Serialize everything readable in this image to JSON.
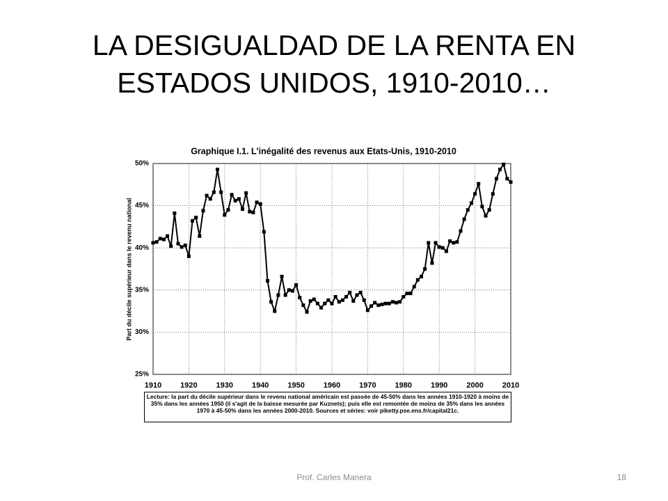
{
  "slide": {
    "title": "LA DESIGUALDAD DE LA RENTA EN ESTADOS UNIDOS, 1910-2010…",
    "footer": "Prof. Carles Manera",
    "page_number": "18"
  },
  "chart_data": {
    "type": "line",
    "title": "Graphique I.1. L'inégalité des revenus aux Etats-Unis, 1910-2010",
    "y_label": "Part du décile supérieur dans le revenu national",
    "caption": "Lecture: la part du décile supérieur dans le revenu national américain est passée de 45-50% dans les années 1910-1920 à moins de 35% dans les années 1950 (il s'agit de la baisse mesurée par Kuznets); puis elle est remontée de moins de 35% dans les années 1970 à 45-50% dans les années 2000-2010. Sources et séries: voir piketty.pse.ens.fr/capital21c.",
    "color": "#000000",
    "grid": true,
    "xlim": [
      1910,
      2010
    ],
    "xticks": [
      1910,
      1920,
      1930,
      1940,
      1950,
      1960,
      1970,
      1980,
      1990,
      2000,
      2010
    ],
    "ylim": [
      25,
      50
    ],
    "yticks": [
      {
        "value": 25,
        "label": "25%"
      },
      {
        "value": 30,
        "label": "30%"
      },
      {
        "value": 35,
        "label": "35%"
      },
      {
        "value": 40,
        "label": "40%"
      },
      {
        "value": 45,
        "label": "45%"
      },
      {
        "value": 50,
        "label": "50%"
      }
    ],
    "x": [
      1910,
      1911,
      1912,
      1913,
      1914,
      1915,
      1916,
      1917,
      1918,
      1919,
      1920,
      1921,
      1922,
      1923,
      1924,
      1925,
      1926,
      1927,
      1928,
      1929,
      1930,
      1931,
      1932,
      1933,
      1934,
      1935,
      1936,
      1937,
      1938,
      1939,
      1940,
      1941,
      1942,
      1943,
      1944,
      1945,
      1946,
      1947,
      1948,
      1949,
      1950,
      1951,
      1952,
      1953,
      1954,
      1955,
      1956,
      1957,
      1958,
      1959,
      1960,
      1961,
      1962,
      1963,
      1964,
      1965,
      1966,
      1967,
      1968,
      1969,
      1970,
      1971,
      1972,
      1973,
      1974,
      1975,
      1976,
      1977,
      1978,
      1979,
      1980,
      1981,
      1982,
      1983,
      1984,
      1985,
      1986,
      1987,
      1988,
      1989,
      1990,
      1991,
      1992,
      1993,
      1994,
      1995,
      1996,
      1997,
      1998,
      1999,
      2000,
      2001,
      2002,
      2003,
      2004,
      2005,
      2006,
      2007,
      2008,
      2009,
      2010
    ],
    "values": [
      40.6,
      40.7,
      41.1,
      41.0,
      41.4,
      40.2,
      44.1,
      40.5,
      40.1,
      40.3,
      39.0,
      43.2,
      43.6,
      41.4,
      44.4,
      46.2,
      45.8,
      46.6,
      49.3,
      46.6,
      43.9,
      44.5,
      46.3,
      45.6,
      45.8,
      44.6,
      46.5,
      44.3,
      44.2,
      45.4,
      45.2,
      41.9,
      36.1,
      33.6,
      32.5,
      34.4,
      36.6,
      34.4,
      35.0,
      34.9,
      35.6,
      34.1,
      33.2,
      32.4,
      33.7,
      33.9,
      33.4,
      32.9,
      33.4,
      33.8,
      33.4,
      34.2,
      33.6,
      33.8,
      34.2,
      34.7,
      33.7,
      34.4,
      34.7,
      33.8,
      32.6,
      33.1,
      33.5,
      33.2,
      33.3,
      33.4,
      33.4,
      33.6,
      33.5,
      33.6,
      34.2,
      34.6,
      34.6,
      35.4,
      36.2,
      36.6,
      37.5,
      40.6,
      38.2,
      40.6,
      40.1,
      40.0,
      39.6,
      40.8,
      40.6,
      40.7,
      42.0,
      43.4,
      44.5,
      45.3,
      46.4,
      47.6,
      44.9,
      43.8,
      44.5,
      46.4,
      48.2,
      49.3,
      49.9,
      48.2,
      47.8
    ]
  }
}
